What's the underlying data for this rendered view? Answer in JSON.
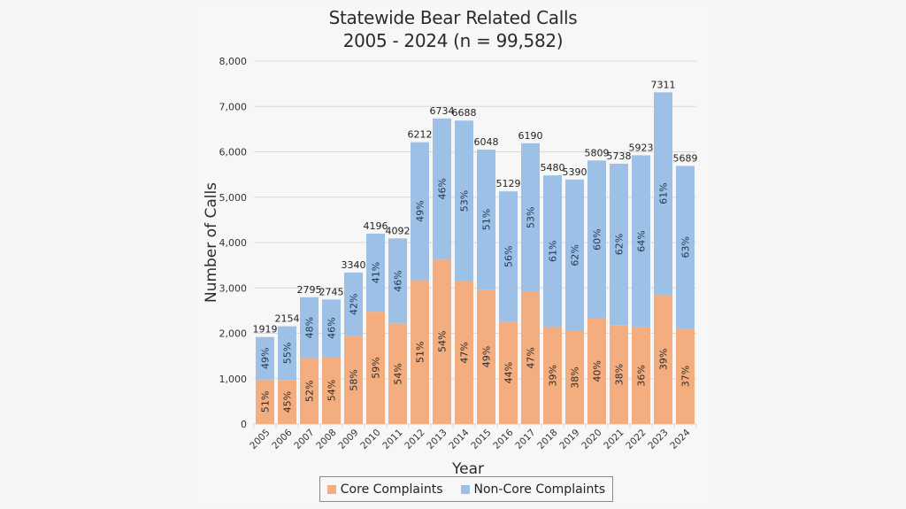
{
  "chart_data": {
    "type": "bar",
    "stacked": true,
    "title": "Statewide Bear Related Calls",
    "subtitle": "2005 - 2024 (n = 99,582)",
    "xlabel": "Year",
    "ylabel": "Number of Calls",
    "ylim": [
      0,
      8000
    ],
    "yticks": [
      0,
      1000,
      2000,
      3000,
      4000,
      5000,
      6000,
      7000,
      8000
    ],
    "ytick_labels": [
      "0",
      "1,000",
      "2,000",
      "3,000",
      "4,000",
      "5,000",
      "6,000",
      "7,000",
      "8,000"
    ],
    "grid": true,
    "legend_position": "bottom",
    "categories": [
      "2005",
      "2006",
      "2007",
      "2008",
      "2009",
      "2010",
      "2011",
      "2012",
      "2013",
      "2014",
      "2015",
      "2016",
      "2017",
      "2018",
      "2019",
      "2020",
      "2021",
      "2022",
      "2023",
      "2024"
    ],
    "totals": [
      1919,
      2154,
      2795,
      2745,
      3340,
      4196,
      4092,
      6212,
      6734,
      6688,
      6048,
      5129,
      6190,
      5480,
      5390,
      5809,
      5738,
      5923,
      7311,
      5689
    ],
    "series": [
      {
        "name": "Core Complaints",
        "color": "#f4ad7e",
        "percent_labels": [
          "51%",
          "45%",
          "52%",
          "54%",
          "58%",
          "59%",
          "54%",
          "51%",
          "54%",
          "47%",
          "49%",
          "44%",
          "47%",
          "39%",
          "38%",
          "40%",
          "38%",
          "36%",
          "39%",
          "37%"
        ],
        "percents": [
          51,
          45,
          52,
          54,
          58,
          59,
          54,
          51,
          54,
          47,
          49,
          44,
          47,
          39,
          38,
          40,
          38,
          36,
          39,
          37
        ]
      },
      {
        "name": "Non-Core Complaints",
        "color": "#9dc1e6",
        "percent_labels": [
          "49%",
          "55%",
          "48%",
          "46%",
          "42%",
          "41%",
          "46%",
          "49%",
          "46%",
          "53%",
          "51%",
          "56%",
          "53%",
          "61%",
          "62%",
          "60%",
          "62%",
          "64%",
          "61%",
          "63%"
        ],
        "percents": [
          49,
          55,
          48,
          46,
          42,
          41,
          46,
          49,
          46,
          53,
          51,
          56,
          53,
          61,
          62,
          60,
          62,
          64,
          61,
          63
        ]
      }
    ]
  },
  "colors": {
    "core": "#f4ad7e",
    "noncore": "#9dc1e6",
    "grid": "#d9d9d9",
    "text": "#2b2b2b"
  }
}
